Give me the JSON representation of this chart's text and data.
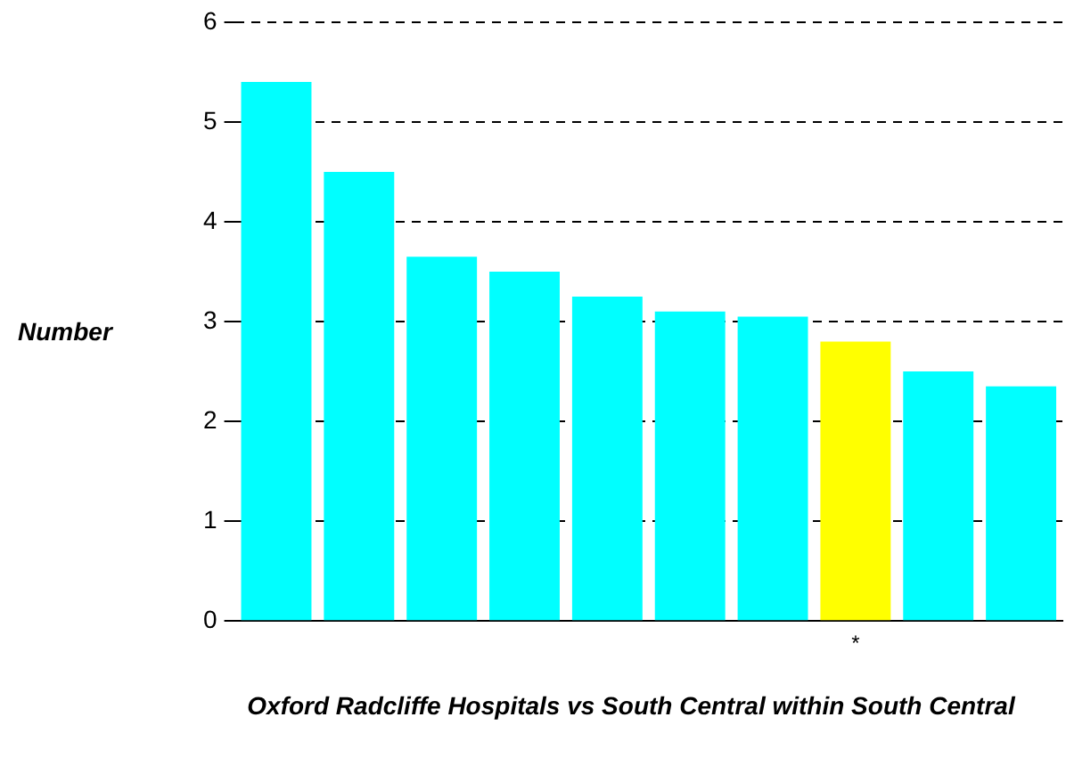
{
  "chart_data": {
    "type": "bar",
    "xlabel": "Oxford Radcliffe Hospitals vs South Central within South Central",
    "ylabel": "Number",
    "categories": [
      null,
      null,
      null,
      null,
      null,
      null,
      null,
      "*",
      null,
      null
    ],
    "values": [
      5.4,
      4.5,
      3.65,
      3.5,
      3.25,
      3.1,
      3.05,
      2.8,
      2.5,
      2.35
    ],
    "colors": [
      "#00ffff",
      "#00ffff",
      "#00ffff",
      "#00ffff",
      "#00ffff",
      "#00ffff",
      "#00ffff",
      "#ffff00",
      "#00ffff",
      "#00ffff"
    ],
    "ylim": [
      0,
      6
    ],
    "yticks": [
      0,
      1,
      2,
      3,
      4,
      5,
      6
    ],
    "grid": "y",
    "legend": false
  }
}
